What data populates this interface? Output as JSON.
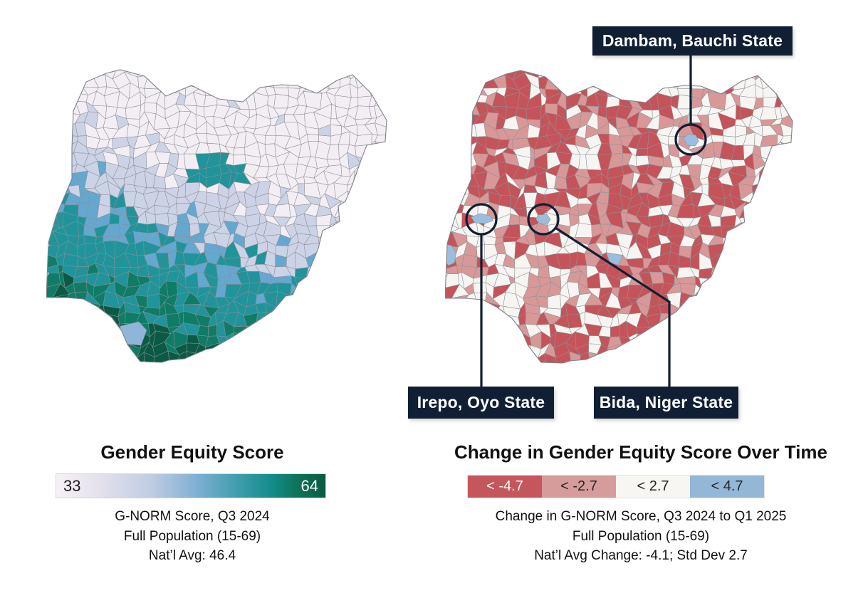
{
  "figure": {
    "left_panel": {
      "title": "Gender Equity Score",
      "legend": {
        "min_label": "33",
        "max_label": "64",
        "gradient_colors": [
          "#f7f1f5",
          "#c0cde3",
          "#7fb0d3",
          "#3d9cab",
          "#148c8b",
          "#0a5a44"
        ]
      },
      "caption_lines": [
        "G-NORM Score, Q3 2024",
        "Full Population (15-69)",
        "Nat’l Avg: 46.4"
      ],
      "map": {
        "name": "Nigeria LGA choropleth of G-NORM score",
        "palette": [
          "#f3eef3",
          "#ccd3e6",
          "#64a8d0",
          "#20949a",
          "#0e7c66",
          "#0a5a44"
        ],
        "water_color": "#8fb6da",
        "boundary_color": "#8e8e96"
      }
    },
    "right_panel": {
      "title": "Change in Gender Equity Score Over Time",
      "legend": {
        "segments": [
          {
            "label": "< -4.7",
            "color": "#c4575c",
            "text_color": "#ffffff"
          },
          {
            "label": "< -2.7",
            "color": "#d69c9c",
            "text_color": "#262626"
          },
          {
            "label": "< 2.7",
            "color": "#f7f6f3",
            "text_color": "#262626"
          },
          {
            "label": "< 4.7",
            "color": "#94b6d7",
            "text_color": "#262626"
          }
        ]
      },
      "caption_lines": [
        "Change in G-NORM Score, Q3 2024 to Q1 2025",
        "Full Population (15-69)",
        "Nat’l Avg Change: -4.1; Std Dev 2.7"
      ],
      "map": {
        "name": "Nigeria LGA choropleth of change in G-NORM score",
        "palette": {
          "decrease_large": "#c45459",
          "decrease_small": "#d89898",
          "stable": "#f7f5f2",
          "increase": "#9bbdde"
        },
        "water_color": "#9bbdde",
        "boundary_color": "#8d9298",
        "accent_navy": "#101f33"
      },
      "callouts": [
        {
          "label": "Dambam, Bauchi State"
        },
        {
          "label": "Irepo, Oyo State"
        },
        {
          "label": "Bida, Niger State"
        }
      ]
    }
  }
}
